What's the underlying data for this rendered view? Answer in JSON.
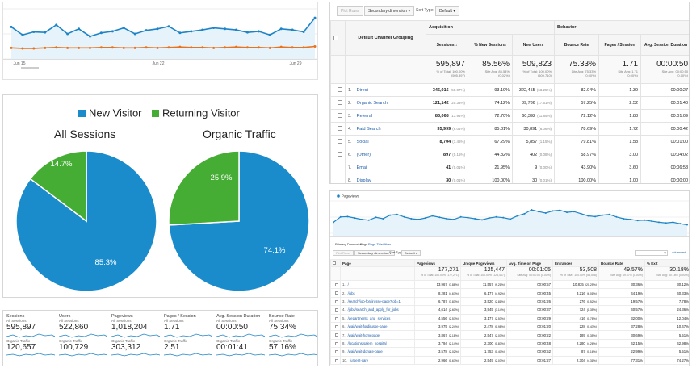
{
  "line_panel": {
    "x_labels": [
      "Jun 15",
      "Jun 22",
      "Jun 29"
    ],
    "colors": {
      "blue": "#1d84c6",
      "orange": "#e8731f",
      "fill": "#e7f3fb"
    },
    "chart_data": {
      "type": "line",
      "series": [
        {
          "values": [
            64,
            48,
            54,
            53,
            68,
            50,
            60,
            45,
            52,
            55,
            62,
            50,
            57,
            60,
            65,
            52,
            55,
            58,
            62,
            60,
            58,
            53,
            55,
            48,
            60,
            58,
            54,
            82
          ]
        },
        {
          "values": [
            22,
            21,
            21,
            22,
            23,
            22,
            22,
            22,
            23,
            23,
            22,
            22,
            23,
            22,
            23,
            24,
            23,
            23,
            22,
            23,
            24,
            23,
            23,
            22,
            24,
            23,
            23,
            25
          ]
        }
      ],
      "ylim": [
        0,
        100
      ]
    }
  },
  "pies": {
    "legend": [
      {
        "label": "New Visitor",
        "color": "#1a8ccc"
      },
      {
        "label": "Returning Visitor",
        "color": "#46ad34"
      }
    ],
    "chart_data": [
      {
        "type": "pie",
        "title": "All Sessions",
        "labels": [
          "New Visitor",
          "Returning Visitor"
        ],
        "values": [
          85.3,
          14.7
        ],
        "value_labels": [
          "85.3%",
          "14.7%"
        ]
      },
      {
        "type": "pie",
        "title": "Organic Traffic",
        "labels": [
          "New Visitor",
          "Returning Visitor"
        ],
        "values": [
          74.1,
          25.9
        ],
        "value_labels": [
          "74.1%",
          "25.9%"
        ]
      }
    ]
  },
  "stats": [
    {
      "label": "Sessions",
      "sub1": "All Sessions",
      "v1": "595,897",
      "sub2": "Organic Traffic",
      "v2": "120,657"
    },
    {
      "label": "Users",
      "sub1": "All Sessions",
      "v1": "522,860",
      "sub2": "Organic Traffic",
      "v2": "100,729"
    },
    {
      "label": "Pageviews",
      "sub1": "All Sessions",
      "v1": "1,018,204",
      "sub2": "Organic Traffic",
      "v2": "303,312"
    },
    {
      "label": "Pages / Session",
      "sub1": "All Sessions",
      "v1": "1.71",
      "sub2": "Organic Traffic",
      "v2": "2.51"
    },
    {
      "label": "Avg. Session Duration",
      "sub1": "All Sessions",
      "v1": "00:00:50",
      "sub2": "Organic Traffic",
      "v2": "00:01:41"
    },
    {
      "label": "Bounce Rate",
      "sub1": "All Sessions",
      "v1": "75.34%",
      "sub2": "Organic Traffic",
      "v2": "57.16%"
    }
  ],
  "acquisition": {
    "plot_rows": "Plot Rows",
    "secondary_dimension": "Secondary dimension",
    "sort_type_label": "Sort Type:",
    "sort_type_value": "Default",
    "group_acquisition": "Acquisition",
    "group_behavior": "Behavior",
    "dimension_header": "Default Channel Grouping",
    "headers": [
      "Sessions",
      "% New Sessions",
      "New Users",
      "Bounce Rate",
      "Pages / Session",
      "Avg. Session Duration"
    ],
    "totals": [
      {
        "v": "595,897",
        "s1": "% of Total: 100.00%",
        "s2": "(595,897)"
      },
      {
        "v": "85.56%",
        "s1": "Site Avg: 85.54%",
        "s2": "(0.02%)"
      },
      {
        "v": "509,823",
        "s1": "% of Total: 100.00%",
        "s2": "(509,710)"
      },
      {
        "v": "75.33%",
        "s1": "Site Avg: 75.33%",
        "s2": "(0.00%)"
      },
      {
        "v": "1.71",
        "s1": "Site Avg: 1.71",
        "s2": "(0.00%)"
      },
      {
        "v": "00:00:50",
        "s1": "Site Avg: 00:00:50",
        "s2": "(0.00%)"
      }
    ],
    "rows": [
      {
        "n": "1.",
        "name": "Direct",
        "sessions": "346,016",
        "spct": "(58.07%)",
        "newpct": "93.19%",
        "newusers": "322,455",
        "upct": "(63.25%)",
        "bounce": "82.04%",
        "pps": "1.39",
        "dur": "00:00:27"
      },
      {
        "n": "2.",
        "name": "Organic Search",
        "sessions": "121,142",
        "spct": "(20.33%)",
        "newpct": "74.12%",
        "newusers": "89,786",
        "upct": "(17.61%)",
        "bounce": "57.25%",
        "pps": "2.52",
        "dur": "00:01:40"
      },
      {
        "n": "3.",
        "name": "Referral",
        "sessions": "83,068",
        "spct": "(13.94%)",
        "newpct": "72.70%",
        "newusers": "60,392",
        "upct": "(11.85%)",
        "bounce": "72.12%",
        "pps": "1.88",
        "dur": "00:01:09"
      },
      {
        "n": "4.",
        "name": "Paid Search",
        "sessions": "35,999",
        "spct": "(6.04%)",
        "newpct": "85.81%",
        "newusers": "30,891",
        "upct": "(6.06%)",
        "bounce": "78.69%",
        "pps": "1.72",
        "dur": "00:00:42"
      },
      {
        "n": "5.",
        "name": "Social",
        "sessions": "8,704",
        "spct": "(1.46%)",
        "newpct": "67.29%",
        "newusers": "5,857",
        "upct": "(1.15%)",
        "bounce": "79.81%",
        "pps": "1.58",
        "dur": "00:01:00"
      },
      {
        "n": "6.",
        "name": "(Other)",
        "sessions": "897",
        "spct": "(0.15%)",
        "newpct": "44.82%",
        "newusers": "402",
        "upct": "(0.08%)",
        "bounce": "58.97%",
        "pps": "3.00",
        "dur": "00:04:02"
      },
      {
        "n": "7.",
        "name": "Email",
        "sessions": "41",
        "spct": "(0.01%)",
        "newpct": "21.95%",
        "newusers": "9",
        "upct": "(0.00%)",
        "bounce": "43.90%",
        "pps": "3.60",
        "dur": "00:06:58"
      },
      {
        "n": "8.",
        "name": "Display",
        "sessions": "30",
        "spct": "(0.01%)",
        "newpct": "100.00%",
        "newusers": "30",
        "upct": "(0.01%)",
        "bounce": "100.00%",
        "pps": "1.00",
        "dur": "00:00:00"
      }
    ]
  },
  "pageviews_panel": {
    "legend": "Pageviews",
    "primary_dimension_label": "Primary Dimension:",
    "dims": [
      "Page",
      "Page Title",
      "Other"
    ],
    "plot_rows": "Plot Rows",
    "secondary_dimension": "Secondary dimension",
    "sort_type_label": "Sort Type:",
    "sort_type_value": "Default",
    "advanced": "advanced",
    "chart_data": {
      "type": "line",
      "series": [
        {
          "name": "Pageviews",
          "values": [
            40,
            55,
            56,
            52,
            48,
            46,
            54,
            50,
            60,
            62,
            55,
            50,
            48,
            52,
            58,
            54,
            50,
            48,
            55,
            53,
            50,
            47,
            52,
            55,
            53,
            49,
            58,
            64,
            75,
            70,
            66,
            72,
            74,
            68,
            70,
            64,
            58,
            56,
            60,
            62,
            55,
            50,
            48,
            45,
            46,
            43,
            40,
            38,
            40,
            36,
            33
          ]
        }
      ],
      "ylim": [
        0,
        100
      ]
    },
    "headers": [
      "Page",
      "Pageviews",
      "Unique Pageviews",
      "Avg. Time on Page",
      "Entrances",
      "Bounce Rate",
      "% Exit"
    ],
    "totals": [
      {
        "v": "177,271",
        "s": "% of Total: 100.00% (177,271)"
      },
      {
        "v": "125,447",
        "s": "% of Total: 100.00% (125,447)"
      },
      {
        "v": "00:01:05",
        "s": "Site Avg: 00:01:05 (0.00%)"
      },
      {
        "v": "53,508",
        "s": "% of Total: 100.00% (53,508)"
      },
      {
        "v": "49.57%",
        "s": "Site Avg: 49.57% (0.00%)"
      },
      {
        "v": "30.18%",
        "s": "Site Avg: 30.18% (0.00%)"
      }
    ],
    "rows": [
      {
        "n": "1.",
        "page": "/",
        "pv": "13,967",
        "pvp": "(7.88%)",
        "upv": "11,557",
        "upvp": "(9.21%)",
        "time": "00:00:57",
        "ent": "10,835",
        "entp": "(20.25%)",
        "br": "30.36%",
        "ex": "30.12%"
      },
      {
        "n": "2.",
        "page": "/jobs",
        "pv": "8,281",
        "pvp": "(4.67%)",
        "upv": "6,177",
        "upvp": "(4.92%)",
        "time": "00:00:45",
        "ent": "3,216",
        "entp": "(6.01%)",
        "br": "44.19%",
        "ex": "40.33%"
      },
      {
        "n": "3.",
        "page": "/search/job-fordirusse-page?job=1",
        "pv": "6,787",
        "pvp": "(3.83%)",
        "upv": "3,520",
        "upvp": "(2.81%)",
        "time": "00:01:26",
        "ent": "276",
        "entp": "(0.52%)",
        "br": "19.57%",
        "ex": "7.78%"
      },
      {
        "n": "4.",
        "page": "/jobs/search_and_apply_for_jobs",
        "pv": "4,614",
        "pvp": "(2.60%)",
        "upv": "3,945",
        "upvp": "(3.14%)",
        "time": "00:00:37",
        "ent": "724",
        "entp": "(1.35%)",
        "br": "40.57%",
        "ex": "24.36%"
      },
      {
        "n": "5.",
        "page": "/departments_and_services",
        "pv": "4,556",
        "pvp": "(2.57%)",
        "upv": "3,177",
        "upvp": "(2.53%)",
        "time": "00:00:29",
        "ent": "416",
        "entp": "(0.78%)",
        "br": "32.00%",
        "ex": "12.04%"
      },
      {
        "n": "6.",
        "page": "/wait/wait-fordirusse-page",
        "pv": "3,975",
        "pvp": "(2.24%)",
        "upv": "2,478",
        "upvp": "(1.98%)",
        "time": "00:01:20",
        "ent": "228",
        "entp": "(0.43%)",
        "br": "37.28%",
        "ex": "10.47%"
      },
      {
        "n": "7.",
        "page": "/wait/wait-homepage",
        "pv": "3,867",
        "pvp": "(2.18%)",
        "upv": "2,547",
        "upvp": "(2.03%)",
        "time": "00:00:22",
        "ent": "189",
        "entp": "(0.35%)",
        "br": "30.69%",
        "ex": "5.51%"
      },
      {
        "n": "8.",
        "page": "/locations/salem_hospital",
        "pv": "3,794",
        "pvp": "(2.14%)",
        "upv": "2,300",
        "upvp": "(1.83%)",
        "time": "00:00:48",
        "ent": "2,280",
        "entp": "(4.26%)",
        "br": "42.15%",
        "ex": "42.98%"
      },
      {
        "n": "9.",
        "page": "/wait/wait-donate-page",
        "pv": "3,578",
        "pvp": "(2.02%)",
        "upv": "1,753",
        "upvp": "(1.40%)",
        "time": "00:00:52",
        "ent": "87",
        "entp": "(0.16%)",
        "br": "22.99%",
        "ex": "5.51%"
      },
      {
        "n": "10.",
        "page": "/urgent-care",
        "pv": "2,966",
        "pvp": "(1.67%)",
        "upv": "2,549",
        "upvp": "(2.03%)",
        "time": "00:01:27",
        "ent": "2,304",
        "entp": "(4.31%)",
        "br": "77.31%",
        "ex": "74.27%"
      }
    ]
  }
}
